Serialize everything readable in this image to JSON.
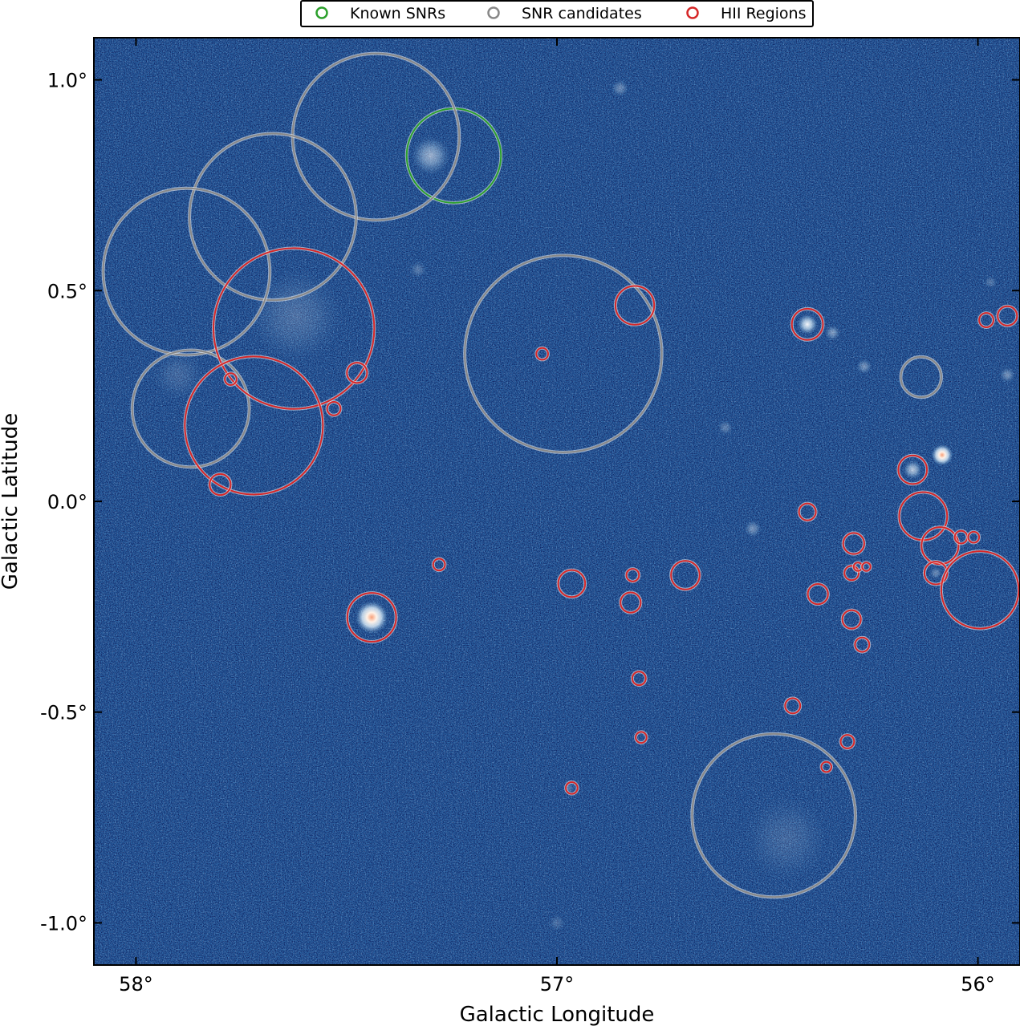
{
  "chart_data": {
    "type": "scatter",
    "xlabel": "Galactic Longitude",
    "ylabel": "Galactic Latitude",
    "xlim": [
      58.1,
      55.9
    ],
    "ylim": [
      -1.1,
      1.1
    ],
    "x_ticks": [
      {
        "value": 58,
        "label": "58°"
      },
      {
        "value": 57,
        "label": "57°"
      },
      {
        "value": 56,
        "label": "56°"
      }
    ],
    "y_ticks": [
      {
        "value": 1.0,
        "label": "1.0°"
      },
      {
        "value": 0.5,
        "label": "0.5°"
      },
      {
        "value": 0.0,
        "label": "0.0°"
      },
      {
        "value": -0.5,
        "label": "-0.5°"
      },
      {
        "value": -1.0,
        "label": "-1.0°"
      }
    ],
    "background": "survey intensity map (blue colormap)",
    "legend": {
      "placement": "top-center",
      "entries": [
        {
          "name": "Known SNRs",
          "color": "#2ca02c"
        },
        {
          "name": "SNR candidates",
          "color": "#888888"
        },
        {
          "name": "HII Regions",
          "color": "#d62728"
        }
      ]
    },
    "series": [
      {
        "name": "Known SNRs",
        "color": "#2ca02c",
        "circles": [
          {
            "l": 57.245,
            "b": 0.82,
            "r": 0.112
          }
        ]
      },
      {
        "name": "SNR candidates",
        "color": "#888888",
        "circles": [
          {
            "l": 57.43,
            "b": 0.865,
            "r": 0.198
          },
          {
            "l": 57.675,
            "b": 0.675,
            "r": 0.198
          },
          {
            "l": 57.88,
            "b": 0.545,
            "r": 0.198
          },
          {
            "l": 57.87,
            "b": 0.22,
            "r": 0.139
          },
          {
            "l": 56.985,
            "b": 0.35,
            "r": 0.234
          },
          {
            "l": 56.135,
            "b": 0.295,
            "r": 0.048
          },
          {
            "l": 56.485,
            "b": -0.745,
            "r": 0.194
          }
        ]
      },
      {
        "name": "HII Regions",
        "color": "#d62728",
        "circles": [
          {
            "l": 57.625,
            "b": 0.41,
            "r": 0.191
          },
          {
            "l": 57.72,
            "b": 0.18,
            "r": 0.164
          },
          {
            "l": 57.475,
            "b": 0.305,
            "r": 0.024
          },
          {
            "l": 57.775,
            "b": 0.29,
            "r": 0.014
          },
          {
            "l": 57.53,
            "b": 0.22,
            "r": 0.016
          },
          {
            "l": 57.8,
            "b": 0.04,
            "r": 0.025
          },
          {
            "l": 57.035,
            "b": 0.35,
            "r": 0.014
          },
          {
            "l": 56.815,
            "b": 0.465,
            "r": 0.046
          },
          {
            "l": 56.405,
            "b": 0.42,
            "r": 0.037
          },
          {
            "l": 55.98,
            "b": 0.43,
            "r": 0.017
          },
          {
            "l": 55.93,
            "b": 0.44,
            "r": 0.023
          },
          {
            "l": 56.155,
            "b": 0.075,
            "r": 0.034
          },
          {
            "l": 56.13,
            "b": -0.035,
            "r": 0.057
          },
          {
            "l": 56.09,
            "b": -0.105,
            "r": 0.044
          },
          {
            "l": 56.04,
            "b": -0.085,
            "r": 0.015
          },
          {
            "l": 56.01,
            "b": -0.085,
            "r": 0.013
          },
          {
            "l": 56.1,
            "b": -0.17,
            "r": 0.027
          },
          {
            "l": 55.995,
            "b": -0.21,
            "r": 0.092
          },
          {
            "l": 56.405,
            "b": -0.025,
            "r": 0.02
          },
          {
            "l": 56.295,
            "b": -0.1,
            "r": 0.025
          },
          {
            "l": 56.3,
            "b": -0.17,
            "r": 0.017
          },
          {
            "l": 56.285,
            "b": -0.155,
            "r": 0.01
          },
          {
            "l": 56.265,
            "b": -0.155,
            "r": 0.01
          },
          {
            "l": 56.38,
            "b": -0.22,
            "r": 0.024
          },
          {
            "l": 56.3,
            "b": -0.28,
            "r": 0.022
          },
          {
            "l": 56.275,
            "b": -0.34,
            "r": 0.017
          },
          {
            "l": 56.695,
            "b": -0.175,
            "r": 0.034
          },
          {
            "l": 56.82,
            "b": -0.175,
            "r": 0.015
          },
          {
            "l": 56.965,
            "b": -0.195,
            "r": 0.032
          },
          {
            "l": 56.825,
            "b": -0.24,
            "r": 0.024
          },
          {
            "l": 57.28,
            "b": -0.15,
            "r": 0.014
          },
          {
            "l": 57.44,
            "b": -0.275,
            "r": 0.058
          },
          {
            "l": 56.805,
            "b": -0.42,
            "r": 0.016
          },
          {
            "l": 56.8,
            "b": -0.56,
            "r": 0.013
          },
          {
            "l": 56.44,
            "b": -0.485,
            "r": 0.018
          },
          {
            "l": 56.31,
            "b": -0.57,
            "r": 0.016
          },
          {
            "l": 56.36,
            "b": -0.63,
            "r": 0.012
          },
          {
            "l": 56.965,
            "b": -0.68,
            "r": 0.014
          }
        ]
      }
    ],
    "bright_sources": [
      {
        "l": 57.44,
        "b": -0.275,
        "s": 0.038,
        "a": 1.0,
        "hot": true
      },
      {
        "l": 56.085,
        "b": 0.11,
        "s": 0.025,
        "a": 1.0,
        "hot": true
      },
      {
        "l": 56.405,
        "b": 0.42,
        "s": 0.024,
        "a": 0.95
      },
      {
        "l": 56.155,
        "b": 0.075,
        "s": 0.022,
        "a": 0.7
      },
      {
        "l": 57.3,
        "b": 0.82,
        "s": 0.045,
        "a": 0.55
      },
      {
        "l": 56.345,
        "b": 0.4,
        "s": 0.018,
        "a": 0.45
      },
      {
        "l": 56.27,
        "b": 0.32,
        "s": 0.018,
        "a": 0.4
      },
      {
        "l": 55.93,
        "b": 0.3,
        "s": 0.018,
        "a": 0.4
      },
      {
        "l": 56.535,
        "b": -0.065,
        "s": 0.02,
        "a": 0.4
      },
      {
        "l": 56.85,
        "b": 0.98,
        "s": 0.02,
        "a": 0.35
      },
      {
        "l": 56.6,
        "b": 0.175,
        "s": 0.018,
        "a": 0.3
      },
      {
        "l": 57.62,
        "b": 0.44,
        "s": 0.11,
        "a": 0.2
      },
      {
        "l": 57.33,
        "b": 0.55,
        "s": 0.02,
        "a": 0.25
      },
      {
        "l": 57.9,
        "b": 0.3,
        "s": 0.06,
        "a": 0.15
      },
      {
        "l": 56.1,
        "b": -0.17,
        "s": 0.015,
        "a": 0.35
      },
      {
        "l": 55.97,
        "b": 0.52,
        "s": 0.015,
        "a": 0.25
      },
      {
        "l": 56.455,
        "b": -0.8,
        "s": 0.1,
        "a": 0.15
      },
      {
        "l": 56.97,
        "b": -0.68,
        "s": 0.012,
        "a": 0.25
      },
      {
        "l": 57.0,
        "b": -1.0,
        "s": 0.02,
        "a": 0.2
      }
    ]
  }
}
